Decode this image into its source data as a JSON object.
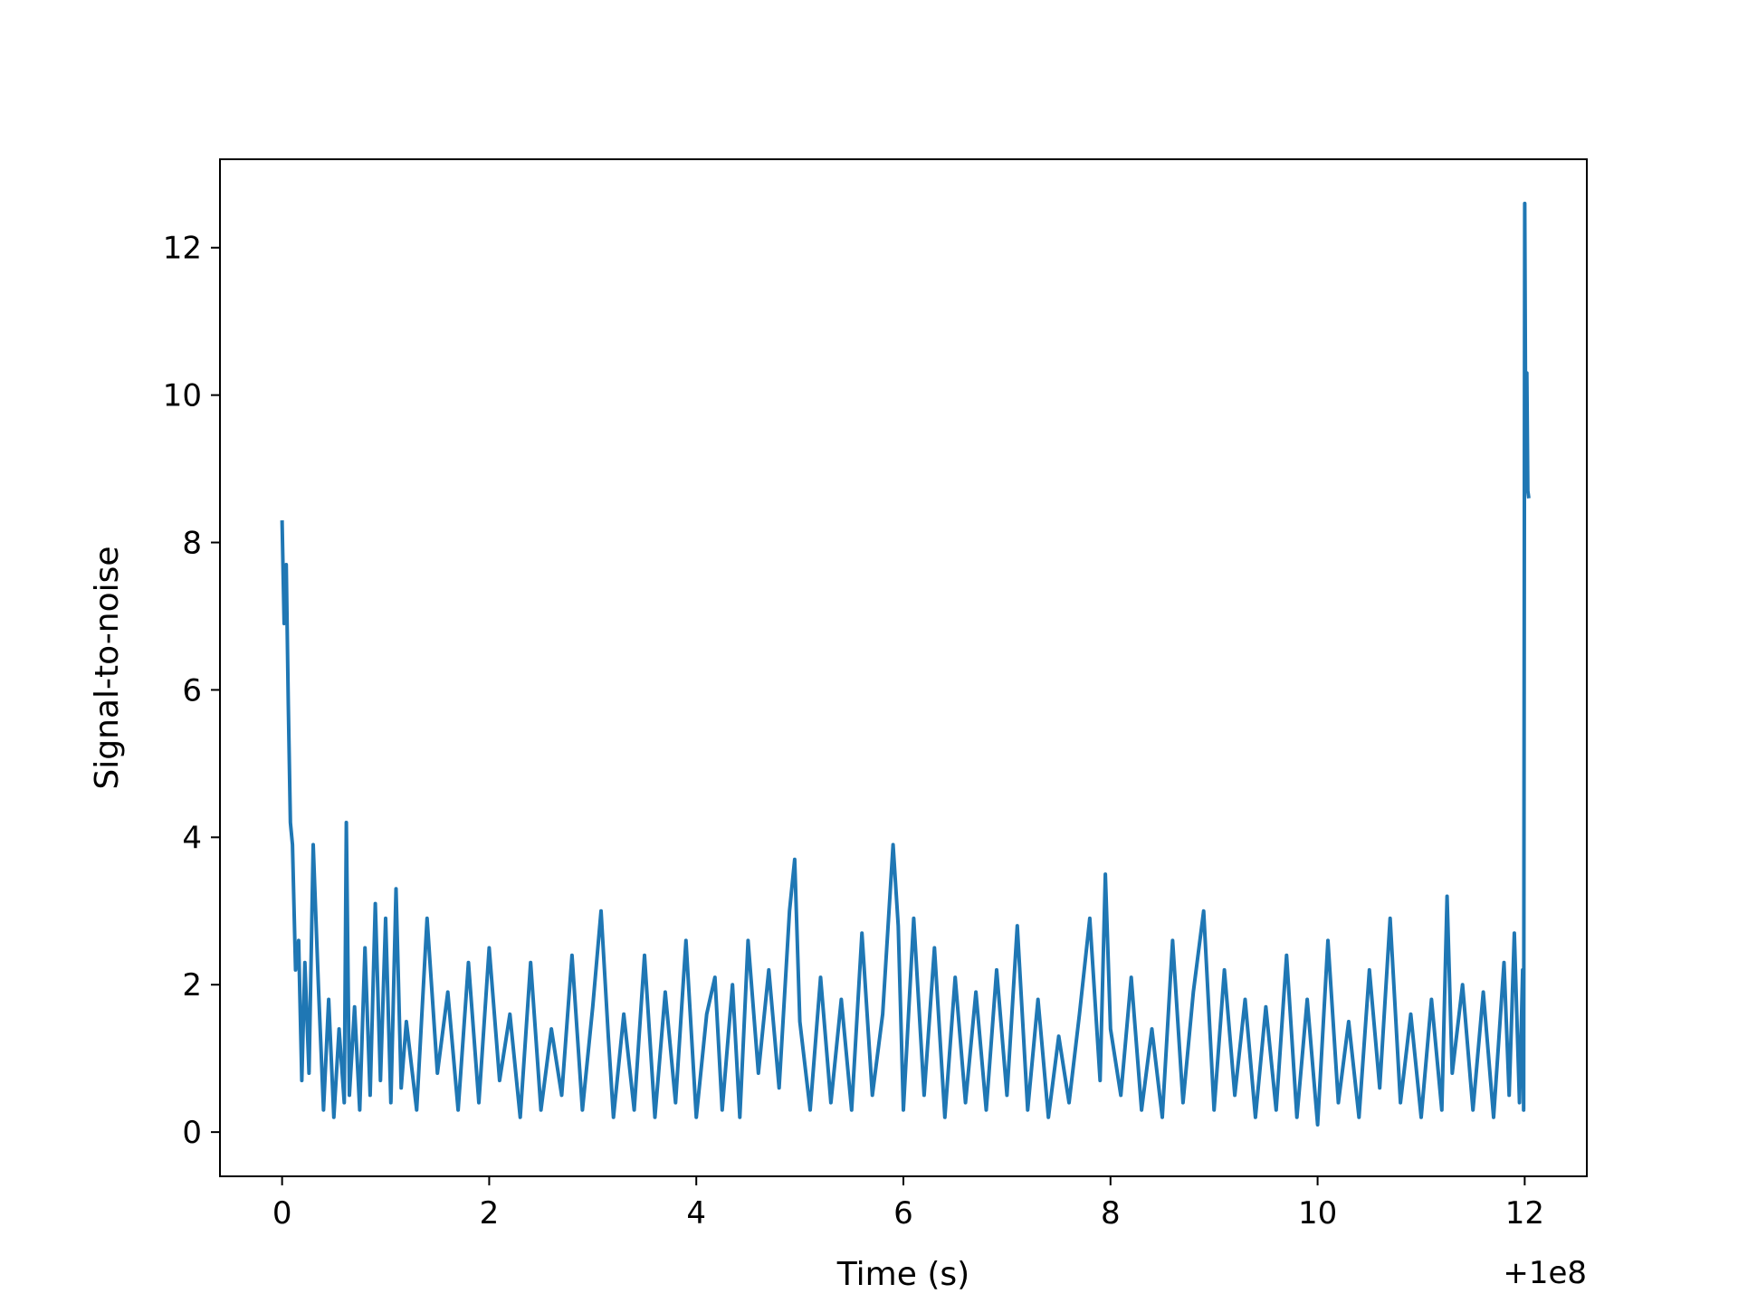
{
  "chart_data": {
    "type": "line",
    "title": "",
    "xlabel": "Time (s)",
    "ylabel": "Signal-to-noise",
    "x_offset_label": "+1e8",
    "xlim": [
      -0.6,
      12.6
    ],
    "ylim": [
      -0.6,
      13.2
    ],
    "xticks": [
      0,
      2,
      4,
      6,
      8,
      10,
      12
    ],
    "yticks": [
      0,
      2,
      4,
      6,
      8,
      10,
      12
    ],
    "grid": false,
    "legend": "none",
    "series": [
      {
        "color": "#1f77b4",
        "x": [
          0.0,
          0.02,
          0.04,
          0.06,
          0.08,
          0.1,
          0.13,
          0.16,
          0.19,
          0.22,
          0.26,
          0.3,
          0.35,
          0.4,
          0.45,
          0.5,
          0.55,
          0.6,
          0.62,
          0.65,
          0.7,
          0.75,
          0.8,
          0.85,
          0.9,
          0.95,
          1.0,
          1.05,
          1.1,
          1.15,
          1.2,
          1.3,
          1.4,
          1.5,
          1.6,
          1.7,
          1.8,
          1.9,
          2.0,
          2.1,
          2.2,
          2.3,
          2.4,
          2.5,
          2.6,
          2.7,
          2.8,
          2.9,
          3.0,
          3.08,
          3.15,
          3.2,
          3.3,
          3.4,
          3.5,
          3.6,
          3.7,
          3.8,
          3.9,
          4.0,
          4.1,
          4.18,
          4.25,
          4.35,
          4.42,
          4.5,
          4.6,
          4.7,
          4.8,
          4.9,
          4.95,
          5.0,
          5.1,
          5.2,
          5.3,
          5.4,
          5.5,
          5.6,
          5.7,
          5.8,
          5.9,
          5.95,
          6.0,
          6.1,
          6.2,
          6.3,
          6.4,
          6.5,
          6.6,
          6.7,
          6.8,
          6.9,
          7.0,
          7.1,
          7.2,
          7.3,
          7.4,
          7.5,
          7.6,
          7.7,
          7.8,
          7.9,
          7.95,
          8.0,
          8.1,
          8.2,
          8.3,
          8.4,
          8.5,
          8.6,
          8.7,
          8.8,
          8.9,
          9.0,
          9.1,
          9.2,
          9.3,
          9.4,
          9.5,
          9.6,
          9.7,
          9.8,
          9.9,
          10.0,
          10.1,
          10.2,
          10.3,
          10.4,
          10.5,
          10.6,
          10.7,
          10.8,
          10.9,
          11.0,
          11.1,
          11.2,
          11.25,
          11.3,
          11.4,
          11.5,
          11.6,
          11.7,
          11.8,
          11.85,
          11.9,
          11.95,
          11.98,
          11.99,
          12.0,
          12.01,
          12.02,
          12.03,
          12.04
        ],
        "y": [
          8.3,
          6.9,
          7.7,
          5.8,
          4.2,
          3.9,
          2.2,
          2.6,
          0.7,
          2.3,
          0.8,
          3.9,
          2.0,
          0.3,
          1.8,
          0.2,
          1.4,
          0.4,
          4.2,
          0.5,
          1.7,
          0.3,
          2.5,
          0.5,
          3.1,
          0.7,
          2.9,
          0.4,
          3.3,
          0.6,
          1.5,
          0.3,
          2.9,
          0.8,
          1.9,
          0.3,
          2.3,
          0.4,
          2.5,
          0.7,
          1.6,
          0.2,
          2.3,
          0.3,
          1.4,
          0.5,
          2.4,
          0.3,
          1.7,
          3.0,
          1.3,
          0.2,
          1.6,
          0.3,
          2.4,
          0.2,
          1.9,
          0.4,
          2.6,
          0.2,
          1.6,
          2.1,
          0.3,
          2.0,
          0.2,
          2.6,
          0.8,
          2.2,
          0.6,
          3.0,
          3.7,
          1.5,
          0.3,
          2.1,
          0.4,
          1.8,
          0.3,
          2.7,
          0.5,
          1.6,
          3.9,
          2.8,
          0.3,
          2.9,
          0.5,
          2.5,
          0.2,
          2.1,
          0.4,
          1.9,
          0.3,
          2.2,
          0.5,
          2.8,
          0.3,
          1.8,
          0.2,
          1.3,
          0.4,
          1.6,
          2.9,
          0.7,
          3.5,
          1.4,
          0.5,
          2.1,
          0.3,
          1.4,
          0.2,
          2.6,
          0.4,
          1.9,
          3.0,
          0.3,
          2.2,
          0.5,
          1.8,
          0.2,
          1.7,
          0.3,
          2.4,
          0.2,
          1.8,
          0.1,
          2.6,
          0.4,
          1.5,
          0.2,
          2.2,
          0.6,
          2.9,
          0.4,
          1.6,
          0.2,
          1.8,
          0.3,
          3.2,
          0.8,
          2.0,
          0.3,
          1.9,
          0.2,
          2.3,
          0.5,
          2.7,
          0.4,
          2.2,
          0.3,
          12.6,
          9.3,
          10.3,
          8.7,
          8.6
        ]
      }
    ]
  }
}
